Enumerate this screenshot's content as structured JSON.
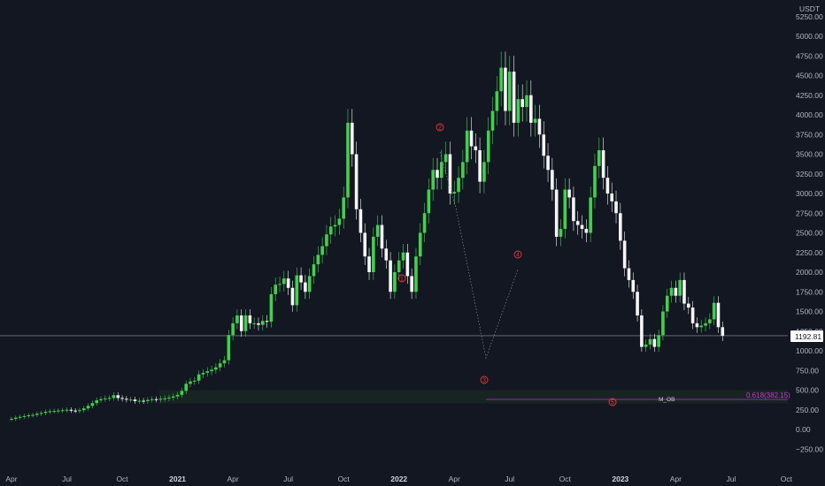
{
  "chart_data": {
    "type": "candlestick",
    "currency": "USDT",
    "ylim": [
      -300,
      5400
    ],
    "y_ticks": [
      -250,
      0,
      250,
      500,
      750,
      1000,
      1250,
      1500,
      1750,
      2000,
      2250,
      2500,
      2750,
      3000,
      3250,
      3500,
      3750,
      4000,
      4250,
      4500,
      4750,
      5000,
      5250
    ],
    "y_tick_labels": [
      "−250.00",
      "0.00",
      "250.00",
      "500.00",
      "750.00",
      "1000.00",
      "1250.00",
      "1500.00",
      "1750.00",
      "2000.00",
      "2250.00",
      "2500.00",
      "2750.00",
      "3000.00",
      "3250.00",
      "3500.00",
      "3750.00",
      "4000.00",
      "4250.00",
      "4500.00",
      "4750.00",
      "5000.00",
      "5250.00"
    ],
    "x_ticks": [
      {
        "label": "Apr",
        "week": 0
      },
      {
        "label": "Jul",
        "week": 13
      },
      {
        "label": "Oct",
        "week": 26
      },
      {
        "label": "2021",
        "week": 39
      },
      {
        "label": "Apr",
        "week": 52
      },
      {
        "label": "Jul",
        "week": 65
      },
      {
        "label": "Oct",
        "week": 78
      },
      {
        "label": "2022",
        "week": 91
      },
      {
        "label": "Apr",
        "week": 104
      },
      {
        "label": "Jul",
        "week": 117
      },
      {
        "label": "Oct",
        "week": 130
      },
      {
        "label": "2023",
        "week": 143
      },
      {
        "label": "Apr",
        "week": 156
      },
      {
        "label": "Jul",
        "week": 169
      },
      {
        "label": "Oct",
        "week": 182
      }
    ],
    "candle_closes": [
      135,
      150,
      160,
      170,
      180,
      185,
      200,
      210,
      225,
      232,
      235,
      240,
      245,
      250,
      240,
      236,
      245,
      268,
      300,
      335,
      370,
      385,
      395,
      400,
      435,
      400,
      390,
      380,
      380,
      360,
      365,
      360,
      375,
      385,
      380,
      390,
      395,
      405,
      420,
      440,
      490,
      580,
      610,
      620,
      700,
      720,
      740,
      760,
      790,
      840,
      880,
      1200,
      1350,
      1450,
      1250,
      1450,
      1350,
      1350,
      1330,
      1380,
      1370,
      1720,
      1840,
      1850,
      1920,
      1800,
      1580,
      1960,
      1870,
      1750,
      1950,
      2100,
      2220,
      2330,
      2480,
      2580,
      2600,
      2680,
      2950,
      3900,
      3500,
      2800,
      2500,
      2200,
      2000,
      2450,
      2600,
      2300,
      2150,
      1750,
      2000,
      2150,
      2250,
      1950,
      1750,
      2200,
      2500,
      2750,
      3050,
      3300,
      3200,
      3400,
      3500,
      3000,
      3020,
      3200,
      3400,
      3800,
      3600,
      3550,
      3150,
      3400,
      3800,
      4050,
      4300,
      4600,
      4050,
      4550,
      3900,
      4200,
      4100,
      4250,
      3900,
      3950,
      3750,
      3480,
      3300,
      3050,
      2450,
      2550,
      3050,
      2950,
      2650,
      2600,
      2550,
      2500,
      2950,
      3350,
      3550,
      3200,
      3000,
      2900,
      2750,
      2400,
      2050,
      1900,
      1750,
      1450,
      1050,
      1080,
      1150,
      1050,
      1200,
      1500,
      1700,
      1800,
      1700,
      1900,
      1600,
      1550,
      1350,
      1300,
      1320,
      1350,
      1400,
      1610,
      1300,
      1192
    ]
  },
  "axis_title": "USDT",
  "last_price_label": "1192.81",
  "wave_labels": [
    "1",
    "2",
    "3",
    "4",
    "5"
  ],
  "fib_label": "0.618(382.15)",
  "ob_label": "M_OB"
}
